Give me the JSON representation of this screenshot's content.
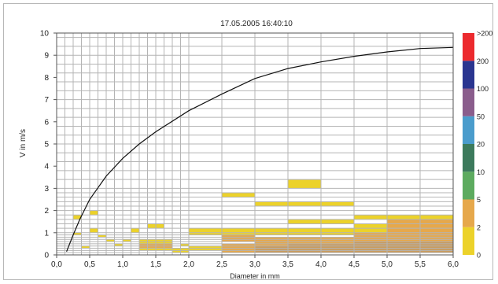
{
  "chart_data": {
    "type": "heatmap",
    "title": "17.05.2005  16:40:10",
    "xlabel": "Diameter in mm",
    "ylabel": "V in m/s",
    "xlim": [
      0,
      6
    ],
    "ylim": [
      0,
      10
    ],
    "x_ticks": [
      "0,0",
      "0,5",
      "1,0",
      "1,5",
      "2,0",
      "2,5",
      "3,0",
      "3,5",
      "4,0",
      "4,5",
      "5,0",
      "5,5",
      "6,0"
    ],
    "y_ticks": [
      "0",
      "1",
      "2",
      "3",
      "4",
      "5",
      "6",
      "7",
      "8",
      "9",
      "10"
    ],
    "x_grid": [
      0,
      0.125,
      0.25,
      0.375,
      0.5,
      0.625,
      0.75,
      0.875,
      1.0,
      1.125,
      1.25,
      1.375,
      1.5,
      1.625,
      1.75,
      1.875,
      2.0,
      2.5,
      3.0,
      3.5,
      4.0,
      4.5,
      5.0,
      5.5,
      6.0
    ],
    "y_grid": [
      0,
      0.1,
      0.2,
      0.3,
      0.4,
      0.5,
      0.6,
      0.7,
      0.8,
      0.9,
      1.0,
      1.2,
      1.4,
      1.6,
      1.8,
      2.0,
      2.2,
      2.4,
      2.6,
      2.8,
      3.0,
      3.4,
      3.8,
      4.2,
      4.6,
      5.0,
      5.4,
      5.8,
      6.2,
      6.6,
      7.0,
      7.4,
      7.8,
      8.2,
      8.6,
      9.0,
      9.4,
      9.8,
      10.0
    ],
    "legend": {
      "placement": "right",
      "labels": [
        "0",
        "2",
        "5",
        "10",
        "20",
        "50",
        "100",
        "200",
        ">200"
      ],
      "colors": [
        "#ecd22a",
        "#e6a84b",
        "#5dab5f",
        "#3c7a5c",
        "#4a9ccc",
        "#8a5d8c",
        "#2a3590",
        "#ec2a2e"
      ]
    },
    "fall_velocity_curve": [
      [
        0.15,
        0.15
      ],
      [
        0.25,
        0.9
      ],
      [
        0.35,
        1.6
      ],
      [
        0.5,
        2.5
      ],
      [
        0.75,
        3.55
      ],
      [
        1.0,
        4.35
      ],
      [
        1.25,
        5.0
      ],
      [
        1.5,
        5.55
      ],
      [
        2.0,
        6.5
      ],
      [
        2.5,
        7.25
      ],
      [
        3.0,
        7.95
      ],
      [
        3.5,
        8.4
      ],
      [
        4.0,
        8.7
      ],
      [
        4.5,
        8.95
      ],
      [
        5.0,
        9.15
      ],
      [
        5.5,
        9.3
      ],
      [
        6.0,
        9.35
      ]
    ],
    "cells": [
      {
        "x0": 0.25,
        "x1": 0.375,
        "y0": 1.6,
        "y1": 1.8,
        "color": "#ecd22a"
      },
      {
        "x0": 0.5,
        "x1": 0.625,
        "y0": 1.8,
        "y1": 2.0,
        "color": "#ecd22a"
      },
      {
        "x0": 0.25,
        "x1": 0.375,
        "y0": 0.9,
        "y1": 1.0,
        "color": "#ecd22a"
      },
      {
        "x0": 0.5,
        "x1": 0.625,
        "y0": 1.0,
        "y1": 1.2,
        "color": "#ecd22a"
      },
      {
        "x0": 0.625,
        "x1": 0.75,
        "y0": 0.8,
        "y1": 0.9,
        "color": "#ecd22a"
      },
      {
        "x0": 0.375,
        "x1": 0.5,
        "y0": 0.3,
        "y1": 0.4,
        "color": "#ecd22a"
      },
      {
        "x0": 0.75,
        "x1": 0.875,
        "y0": 0.6,
        "y1": 0.7,
        "color": "#ecd22a"
      },
      {
        "x0": 0.875,
        "x1": 1.0,
        "y0": 0.4,
        "y1": 0.5,
        "color": "#ecd22a"
      },
      {
        "x0": 1.0,
        "x1": 1.125,
        "y0": 0.6,
        "y1": 0.7,
        "color": "#ecd22a"
      },
      {
        "x0": 1.125,
        "x1": 1.25,
        "y0": 1.0,
        "y1": 1.2,
        "color": "#ecd22a"
      },
      {
        "x0": 1.375,
        "x1": 1.625,
        "y0": 1.2,
        "y1": 1.4,
        "color": "#ecd22a"
      },
      {
        "x0": 1.25,
        "x1": 1.75,
        "y0": 0.2,
        "y1": 0.7,
        "color": "#ecd22a"
      },
      {
        "x0": 1.25,
        "x1": 1.75,
        "y0": 0.3,
        "y1": 0.5,
        "color": "#e6a84b"
      },
      {
        "x0": 1.75,
        "x1": 2.0,
        "y0": 0.1,
        "y1": 0.3,
        "color": "#ecd22a"
      },
      {
        "x0": 1.875,
        "x1": 2.0,
        "y0": 0.4,
        "y1": 0.5,
        "color": "#ecd22a"
      },
      {
        "x0": 2.0,
        "x1": 2.5,
        "y0": 0.9,
        "y1": 1.2,
        "color": "#ecd22a"
      },
      {
        "x0": 2.0,
        "x1": 2.5,
        "y0": 0.2,
        "y1": 0.4,
        "color": "#ecd22a"
      },
      {
        "x0": 2.5,
        "x1": 3.0,
        "y0": 2.6,
        "y1": 2.8,
        "color": "#ecd22a"
      },
      {
        "x0": 2.5,
        "x1": 3.0,
        "y0": 0.9,
        "y1": 1.2,
        "color": "#ecd22a"
      },
      {
        "x0": 2.5,
        "x1": 3.0,
        "y0": 0.6,
        "y1": 0.9,
        "color": "#e6a84b"
      },
      {
        "x0": 2.5,
        "x1": 3.0,
        "y0": 0.1,
        "y1": 0.5,
        "color": "#e6a84b"
      },
      {
        "x0": 3.0,
        "x1": 4.5,
        "y0": 2.2,
        "y1": 2.4,
        "color": "#ecd22a"
      },
      {
        "x0": 3.0,
        "x1": 3.5,
        "y0": 0.9,
        "y1": 1.2,
        "color": "#ecd22a"
      },
      {
        "x0": 3.0,
        "x1": 3.5,
        "y0": 0.4,
        "y1": 0.8,
        "color": "#e6a84b"
      },
      {
        "x0": 3.0,
        "x1": 3.5,
        "y0": 0.1,
        "y1": 0.4,
        "color": "#c99b5c"
      },
      {
        "x0": 3.5,
        "x1": 4.0,
        "y0": 3.0,
        "y1": 3.4,
        "color": "#ecd22a"
      },
      {
        "x0": 3.5,
        "x1": 4.0,
        "y0": 1.4,
        "y1": 1.6,
        "color": "#ecd22a"
      },
      {
        "x0": 3.5,
        "x1": 4.0,
        "y0": 0.9,
        "y1": 1.2,
        "color": "#ecd22a"
      },
      {
        "x0": 3.5,
        "x1": 4.0,
        "y0": 0.5,
        "y1": 0.8,
        "color": "#e6a84b"
      },
      {
        "x0": 3.5,
        "x1": 4.0,
        "y0": 0.1,
        "y1": 0.5,
        "color": "#c99b5c"
      },
      {
        "x0": 4.0,
        "x1": 4.5,
        "y0": 1.4,
        "y1": 1.6,
        "color": "#ecd22a"
      },
      {
        "x0": 4.0,
        "x1": 4.5,
        "y0": 0.9,
        "y1": 1.2,
        "color": "#ecd22a"
      },
      {
        "x0": 4.0,
        "x1": 4.5,
        "y0": 0.5,
        "y1": 0.8,
        "color": "#e6a84b"
      },
      {
        "x0": 4.0,
        "x1": 4.5,
        "y0": 0.1,
        "y1": 0.5,
        "color": "#c99b5c"
      },
      {
        "x0": 4.5,
        "x1": 5.0,
        "y0": 1.6,
        "y1": 1.8,
        "color": "#ecd22a"
      },
      {
        "x0": 4.5,
        "x1": 5.0,
        "y0": 1.0,
        "y1": 1.4,
        "color": "#ecd22a"
      },
      {
        "x0": 4.5,
        "x1": 5.0,
        "y0": 0.6,
        "y1": 1.0,
        "color": "#e6a84b"
      },
      {
        "x0": 4.5,
        "x1": 5.0,
        "y0": 0.1,
        "y1": 0.6,
        "color": "#c99b5c"
      },
      {
        "x0": 5.0,
        "x1": 6.0,
        "y0": 1.6,
        "y1": 1.8,
        "color": "#ecd22a"
      },
      {
        "x0": 5.0,
        "x1": 6.0,
        "y0": 1.2,
        "y1": 1.6,
        "color": "#e6a84b"
      },
      {
        "x0": 5.0,
        "x1": 6.0,
        "y0": 0.6,
        "y1": 1.2,
        "color": "#e6a84b"
      },
      {
        "x0": 5.0,
        "x1": 6.0,
        "y0": 0.1,
        "y1": 0.6,
        "color": "#c99b5c"
      }
    ]
  }
}
